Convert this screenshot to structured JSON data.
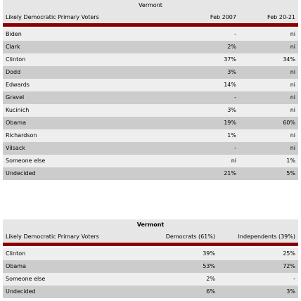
{
  "tables": [
    {
      "title": "Vermont",
      "header": [
        "Likely Democratic Primary Voters",
        "Feb 2007",
        "Feb 20-21"
      ],
      "rows": [
        [
          "Biden",
          "-",
          "ni"
        ],
        [
          "Clark",
          "2%",
          "ni"
        ],
        [
          "Clinton",
          "37%",
          "34%"
        ],
        [
          "Dodd",
          "3%",
          "ni"
        ],
        [
          "Edwards",
          "14%",
          "ni"
        ],
        [
          "Gravel",
          "-",
          "ni"
        ],
        [
          "Kucinich",
          "3%",
          "ni"
        ],
        [
          "Obama",
          "19%",
          "60%"
        ],
        [
          "Richardson",
          "1%",
          "ni"
        ],
        [
          "Vilsack",
          "-",
          "ni"
        ],
        [
          "Someone else",
          "ni",
          "1%"
        ],
        [
          "Undecided",
          "21%",
          "5%"
        ]
      ]
    },
    {
      "title": "Vermont",
      "header": [
        "Likely Democratic Primary Voters",
        "Democrats (61%)",
        "Independents (39%)"
      ],
      "rows": [
        [
          "Clinton",
          "39%",
          "25%"
        ],
        [
          "Obama",
          "53%",
          "72%"
        ],
        [
          "Someone else",
          "2%",
          "-"
        ],
        [
          "Undecided",
          "6%",
          "3%"
        ]
      ]
    }
  ]
}
